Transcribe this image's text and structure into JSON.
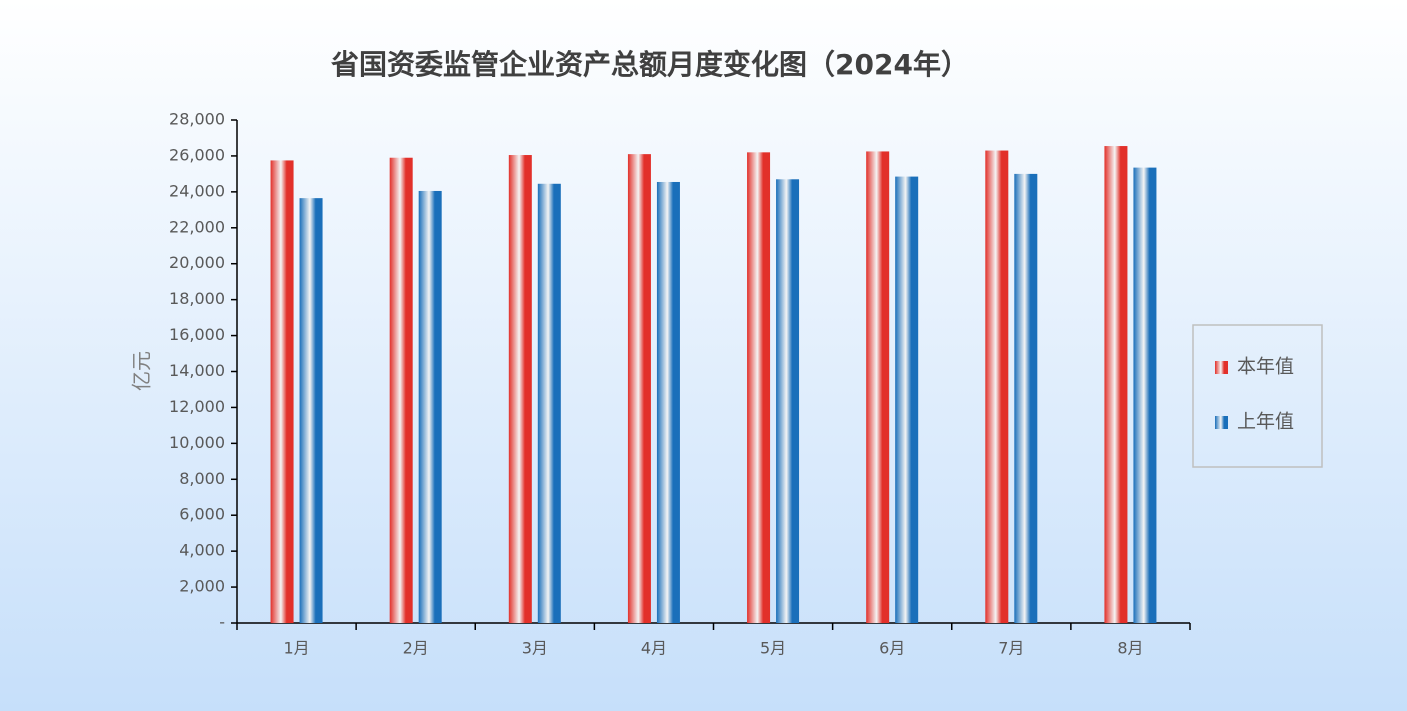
{
  "chart_data": {
    "type": "bar",
    "title": "省国资委监管企业资产总额月度变化图（2024年）",
    "y_label": "亿元",
    "categories": [
      "1月",
      "2月",
      "3月",
      "4月",
      "5月",
      "6月",
      "7月",
      "8月"
    ],
    "series": [
      {
        "name": "本年值",
        "color": "#e2302a",
        "values": [
          25750,
          25900,
          26050,
          26100,
          26200,
          26250,
          26300,
          26550
        ]
      },
      {
        "name": "上年值",
        "color": "#1a6fba",
        "values": [
          23650,
          24050,
          24450,
          24550,
          24700,
          24850,
          25000,
          25350
        ]
      }
    ],
    "ylim": [
      0,
      28000
    ],
    "yticks": [
      {
        "value": 0,
        "label": "-"
      },
      {
        "value": 2000,
        "label": "2,000"
      },
      {
        "value": 4000,
        "label": "4,000"
      },
      {
        "value": 6000,
        "label": "6,000"
      },
      {
        "value": 8000,
        "label": "8,000"
      },
      {
        "value": 10000,
        "label": "10,000"
      },
      {
        "value": 12000,
        "label": "12,000"
      },
      {
        "value": 14000,
        "label": "14,000"
      },
      {
        "value": 16000,
        "label": "16,000"
      },
      {
        "value": 18000,
        "label": "18,000"
      },
      {
        "value": 20000,
        "label": "20,000"
      },
      {
        "value": 22000,
        "label": "22,000"
      },
      {
        "value": 24000,
        "label": "24,000"
      },
      {
        "value": 26000,
        "label": "26,000"
      },
      {
        "value": 28000,
        "label": "28,000"
      }
    ],
    "legend": "right",
    "grid": false
  }
}
